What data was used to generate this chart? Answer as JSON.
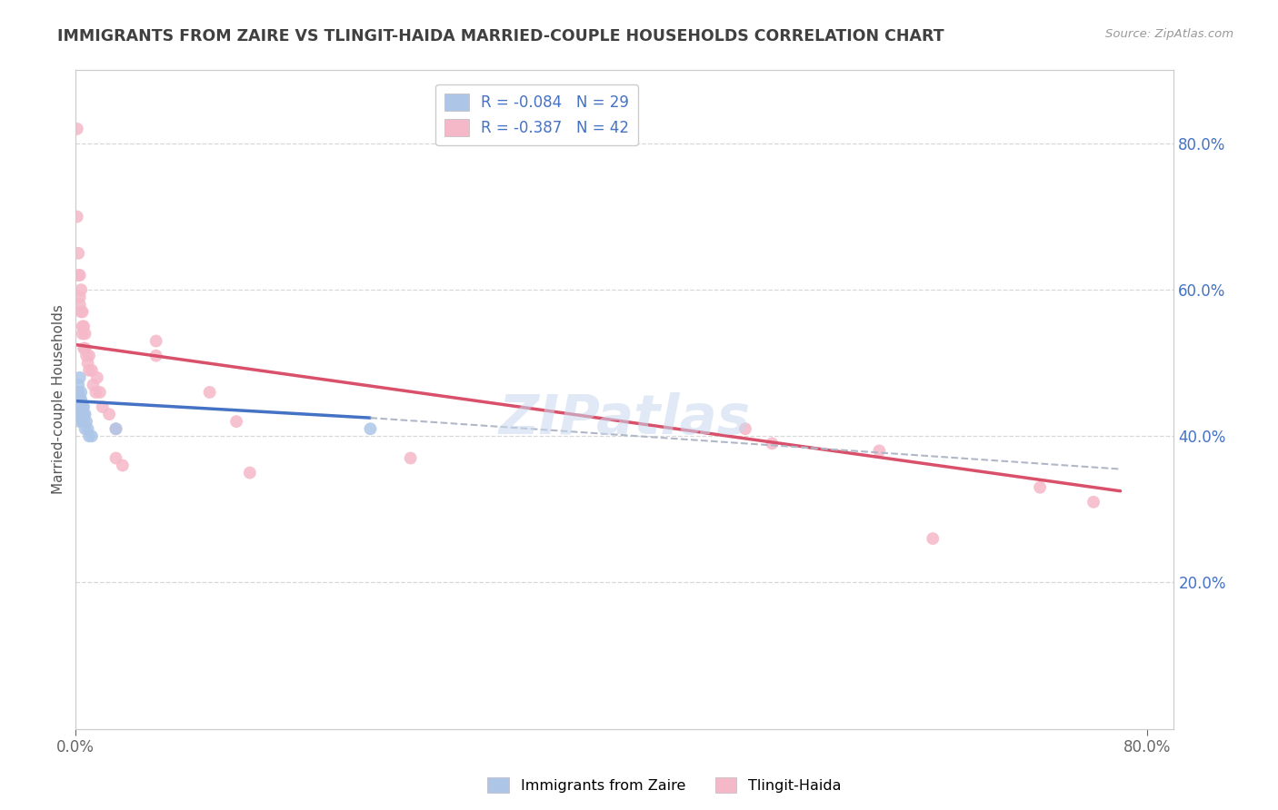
{
  "title": "IMMIGRANTS FROM ZAIRE VS TLINGIT-HAIDA MARRIED-COUPLE HOUSEHOLDS CORRELATION CHART",
  "source": "Source: ZipAtlas.com",
  "ylabel": "Married-couple Households",
  "watermark": "ZIPatlas",
  "legend_label_1": "R = -0.084   N = 29",
  "legend_label_2": "R = -0.387   N = 42",
  "blue_scatter": [
    [
      0.001,
      0.46
    ],
    [
      0.001,
      0.44
    ],
    [
      0.002,
      0.47
    ],
    [
      0.002,
      0.45
    ],
    [
      0.002,
      0.46
    ],
    [
      0.002,
      0.44
    ],
    [
      0.003,
      0.48
    ],
    [
      0.003,
      0.45
    ],
    [
      0.003,
      0.44
    ],
    [
      0.003,
      0.43
    ],
    [
      0.003,
      0.42
    ],
    [
      0.004,
      0.46
    ],
    [
      0.004,
      0.45
    ],
    [
      0.004,
      0.44
    ],
    [
      0.004,
      0.43
    ],
    [
      0.005,
      0.44
    ],
    [
      0.005,
      0.43
    ],
    [
      0.005,
      0.42
    ],
    [
      0.006,
      0.44
    ],
    [
      0.006,
      0.43
    ],
    [
      0.006,
      0.42
    ],
    [
      0.007,
      0.43
    ],
    [
      0.007,
      0.41
    ],
    [
      0.008,
      0.42
    ],
    [
      0.009,
      0.41
    ],
    [
      0.01,
      0.4
    ],
    [
      0.012,
      0.4
    ],
    [
      0.03,
      0.41
    ],
    [
      0.22,
      0.41
    ]
  ],
  "pink_scatter": [
    [
      0.001,
      0.82
    ],
    [
      0.001,
      0.7
    ],
    [
      0.002,
      0.65
    ],
    [
      0.002,
      0.62
    ],
    [
      0.003,
      0.62
    ],
    [
      0.003,
      0.59
    ],
    [
      0.003,
      0.58
    ],
    [
      0.004,
      0.6
    ],
    [
      0.004,
      0.57
    ],
    [
      0.005,
      0.57
    ],
    [
      0.005,
      0.55
    ],
    [
      0.005,
      0.54
    ],
    [
      0.006,
      0.55
    ],
    [
      0.006,
      0.52
    ],
    [
      0.007,
      0.52
    ],
    [
      0.007,
      0.54
    ],
    [
      0.008,
      0.51
    ],
    [
      0.009,
      0.5
    ],
    [
      0.01,
      0.49
    ],
    [
      0.01,
      0.51
    ],
    [
      0.012,
      0.49
    ],
    [
      0.013,
      0.47
    ],
    [
      0.015,
      0.46
    ],
    [
      0.016,
      0.48
    ],
    [
      0.018,
      0.46
    ],
    [
      0.02,
      0.44
    ],
    [
      0.025,
      0.43
    ],
    [
      0.03,
      0.41
    ],
    [
      0.03,
      0.37
    ],
    [
      0.035,
      0.36
    ],
    [
      0.06,
      0.53
    ],
    [
      0.06,
      0.51
    ],
    [
      0.1,
      0.46
    ],
    [
      0.12,
      0.42
    ],
    [
      0.13,
      0.35
    ],
    [
      0.25,
      0.37
    ],
    [
      0.5,
      0.41
    ],
    [
      0.52,
      0.39
    ],
    [
      0.6,
      0.38
    ],
    [
      0.64,
      0.26
    ],
    [
      0.72,
      0.33
    ],
    [
      0.76,
      0.31
    ]
  ],
  "blue_line_x": [
    0.0,
    0.22
  ],
  "blue_line_y": [
    0.448,
    0.425
  ],
  "pink_line_x": [
    0.0,
    0.78
  ],
  "pink_line_y": [
    0.525,
    0.325
  ],
  "dash_line_x": [
    0.22,
    0.78
  ],
  "dash_line_y": [
    0.425,
    0.355
  ],
  "xlim": [
    0.0,
    0.82
  ],
  "ylim": [
    0.0,
    0.9
  ],
  "right_yticks": [
    0.2,
    0.4,
    0.6,
    0.8
  ],
  "right_yticklabels": [
    "20.0%",
    "40.0%",
    "60.0%",
    "80.0%"
  ],
  "background_color": "#ffffff",
  "grid_color": "#d8d8d8",
  "scatter_size": 100,
  "blue_color": "#adc6e8",
  "pink_color": "#f5b8c8",
  "blue_line_color": "#4472c4",
  "pink_line_color": "#d9506a",
  "dash_line_color": "#b0b8c8",
  "title_color": "#404040",
  "right_tick_color": "#4472c4",
  "source_color": "#999999",
  "legend_text_color": "#404040",
  "legend_val_color": "#4472c4"
}
